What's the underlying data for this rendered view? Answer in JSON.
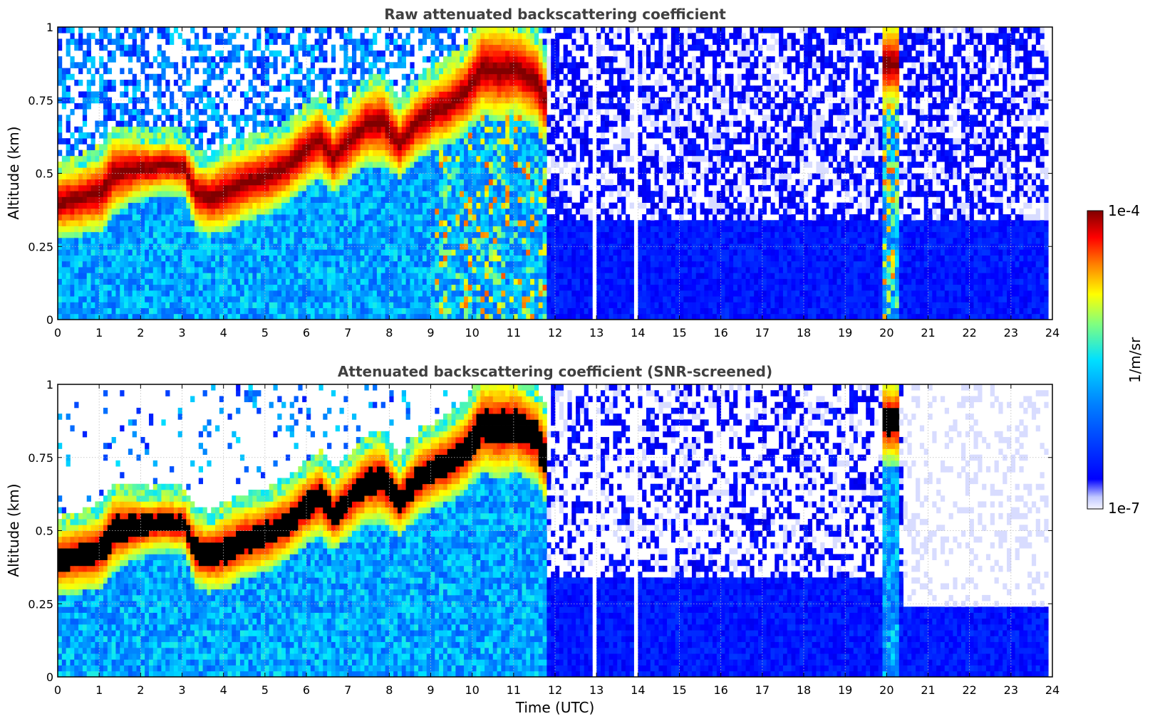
{
  "chart_data": [
    {
      "type": "heatmap",
      "title": "Raw attenuated backscattering coefficient",
      "xlabel": "",
      "ylabel": "Altitude (km)",
      "xlim": [
        0,
        24
      ],
      "ylim": [
        0,
        1
      ],
      "x_ticks": [
        0,
        1,
        2,
        3,
        4,
        5,
        6,
        7,
        8,
        9,
        10,
        11,
        12,
        13,
        14,
        15,
        16,
        17,
        18,
        19,
        20,
        21,
        22,
        23,
        24
      ],
      "y_ticks": [
        0,
        0.25,
        0.5,
        0.75,
        1
      ],
      "y_tick_labels": [
        "0",
        "0.25",
        "0.5",
        "0.75",
        "1"
      ],
      "grid": true,
      "colormap": "jet",
      "snr_screened": false,
      "data_gaps_utc": [
        [
          12.85,
          12.95
        ],
        [
          13.88,
          14.0
        ],
        [
          23.82,
          24.0
        ]
      ],
      "layer_top_profile": {
        "time_utc": [
          0,
          0.5,
          1,
          1.3,
          1.8,
          2.2,
          2.6,
          3.0,
          3.3,
          3.6,
          4.0,
          4.5,
          5.0,
          5.5,
          6.0,
          6.3,
          6.6,
          7.0,
          7.4,
          7.8,
          8.2,
          8.6,
          9.0,
          9.4,
          9.8,
          10.2,
          10.6,
          11.0,
          11.5,
          11.8
        ],
        "top_km": [
          0.5,
          0.52,
          0.55,
          0.62,
          0.61,
          0.6,
          0.61,
          0.6,
          0.53,
          0.52,
          0.55,
          0.58,
          0.6,
          0.63,
          0.7,
          0.73,
          0.66,
          0.72,
          0.78,
          0.8,
          0.7,
          0.78,
          0.82,
          0.85,
          0.9,
          1.0,
          1.0,
          1.0,
          0.95,
          0.85
        ],
        "base_km": [
          0.3,
          0.31,
          0.32,
          0.38,
          0.42,
          0.44,
          0.45,
          0.44,
          0.33,
          0.31,
          0.32,
          0.36,
          0.38,
          0.42,
          0.48,
          0.5,
          0.45,
          0.5,
          0.55,
          0.55,
          0.5,
          0.56,
          0.6,
          0.62,
          0.66,
          0.72,
          0.7,
          0.72,
          0.68,
          0.6
        ]
      },
      "colorbar": {
        "min_label": "1e-7",
        "max_label": "1e-4",
        "label": "1/m/sr"
      }
    },
    {
      "type": "heatmap",
      "title": "Attenuated backscattering coefficient (SNR-screened)",
      "xlabel": "Time (UTC)",
      "ylabel": "Altitude (km)",
      "xlim": [
        0,
        24
      ],
      "ylim": [
        0,
        1
      ],
      "x_ticks": [
        0,
        1,
        2,
        3,
        4,
        5,
        6,
        7,
        8,
        9,
        10,
        11,
        12,
        13,
        14,
        15,
        16,
        17,
        18,
        19,
        20,
        21,
        22,
        23,
        24
      ],
      "y_ticks": [
        0,
        0.25,
        0.5,
        0.75,
        1
      ],
      "y_tick_labels": [
        "0",
        "0.25",
        "0.5",
        "0.75",
        "1"
      ],
      "grid": true,
      "colormap": "jet",
      "snr_screened": true,
      "colorbar": {
        "min_label": "1e-7",
        "max_label": "1e-4",
        "label": "1/m/sr"
      }
    }
  ]
}
